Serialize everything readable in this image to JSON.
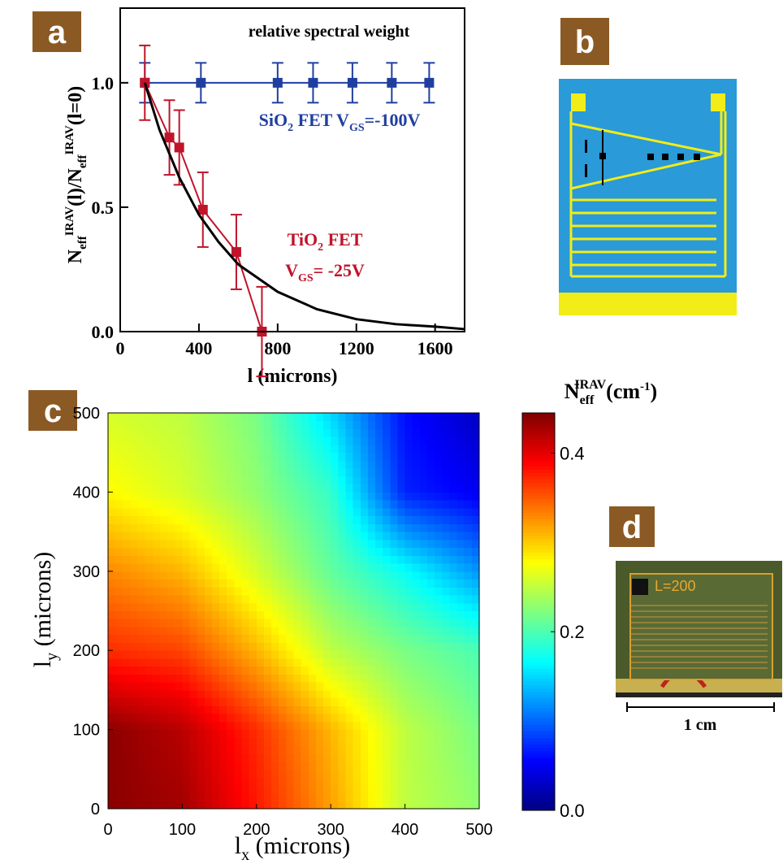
{
  "chart_data": [
    {
      "type": "line",
      "label": "a",
      "title": "relative spectral weight",
      "xlabel": [
        "l (microns)"
      ],
      "ylabel": [
        "N",
        "eff",
        "IRAV",
        "(l)/N",
        "eff",
        "IRAV",
        "(l=0)"
      ],
      "xlim": [
        0,
        1750
      ],
      "ylim": [
        0,
        1.3
      ],
      "xticks": [
        0,
        400,
        800,
        1200,
        1600
      ],
      "yticks": [
        {
          "value": 0,
          "label": "0.0"
        },
        0.5,
        {
          "value": 1,
          "label": "1.0"
        }
      ],
      "annotations": [
        [
          "SiO",
          "2",
          " FET V",
          "GS",
          "=-100V"
        ],
        [
          "TiO",
          "2",
          " FET"
        ],
        [
          "V",
          "GS",
          "= -25V"
        ]
      ],
      "series": [
        {
          "color": "#1f3fa0",
          "marker": "square",
          "x": [
            125,
            410,
            800,
            980,
            1180,
            1380,
            1570
          ],
          "values": [
            1.0,
            1.0,
            1.0,
            1.0,
            1.0,
            1.0,
            1.0
          ],
          "errors": [
            0.08,
            0.08,
            0.08,
            0.08,
            0.08,
            0.08,
            0.08
          ]
        },
        {
          "color": "#c0142a",
          "marker": "square",
          "x": [
            125,
            250,
            300,
            420,
            590,
            720
          ],
          "values": [
            1.0,
            0.78,
            0.74,
            0.49,
            0.32,
            0.0
          ],
          "errors": [
            0.15,
            0.15,
            0.15,
            0.15,
            0.15,
            0.18
          ]
        },
        {
          "color": "#000000",
          "marker": "none",
          "x": [
            125,
            200,
            300,
            400,
            500,
            600,
            800,
            1000,
            1200,
            1400,
            1600,
            1750
          ],
          "values": [
            1.0,
            0.81,
            0.62,
            0.47,
            0.36,
            0.27,
            0.16,
            0.09,
            0.05,
            0.03,
            0.02,
            0.01
          ]
        }
      ]
    },
    {
      "type": "heatmap",
      "label": "c",
      "colormap": "jet",
      "xlabel": [
        "l",
        "x",
        " (microns)"
      ],
      "ylabel": [
        "l",
        "y",
        " (microns)"
      ],
      "colorbar_label": [
        "N",
        "eff",
        "IRAV",
        "(cm",
        "-1",
        ")"
      ],
      "xlim": [
        0,
        500
      ],
      "ylim": [
        0,
        500
      ],
      "clim": [
        0,
        0.445
      ],
      "xticks": [
        0,
        100,
        200,
        300,
        400,
        500
      ],
      "yticks": [
        0,
        100,
        200,
        300,
        400,
        500
      ],
      "cticks": [
        {
          "value": 0,
          "label": "0.0"
        },
        0.2,
        0.4
      ],
      "x": [
        0,
        100,
        200,
        300,
        400,
        500
      ],
      "y": [
        0,
        100,
        200,
        300,
        400,
        500
      ],
      "z": [
        [
          0.44,
          0.43,
          0.38,
          0.32,
          0.25,
          0.23
        ],
        [
          0.44,
          0.42,
          0.37,
          0.31,
          0.25,
          0.22
        ],
        [
          0.37,
          0.36,
          0.31,
          0.25,
          0.22,
          0.2
        ],
        [
          0.33,
          0.31,
          0.26,
          0.21,
          0.17,
          0.12
        ],
        [
          0.28,
          0.26,
          0.23,
          0.19,
          0.07,
          0.05
        ],
        [
          0.26,
          0.25,
          0.22,
          0.15,
          0.06,
          0.03
        ]
      ]
    }
  ],
  "panel_b": {
    "label": "b"
  },
  "panel_d": {
    "label": "d",
    "chip_text": "L=200",
    "scale_label": "1 cm"
  }
}
